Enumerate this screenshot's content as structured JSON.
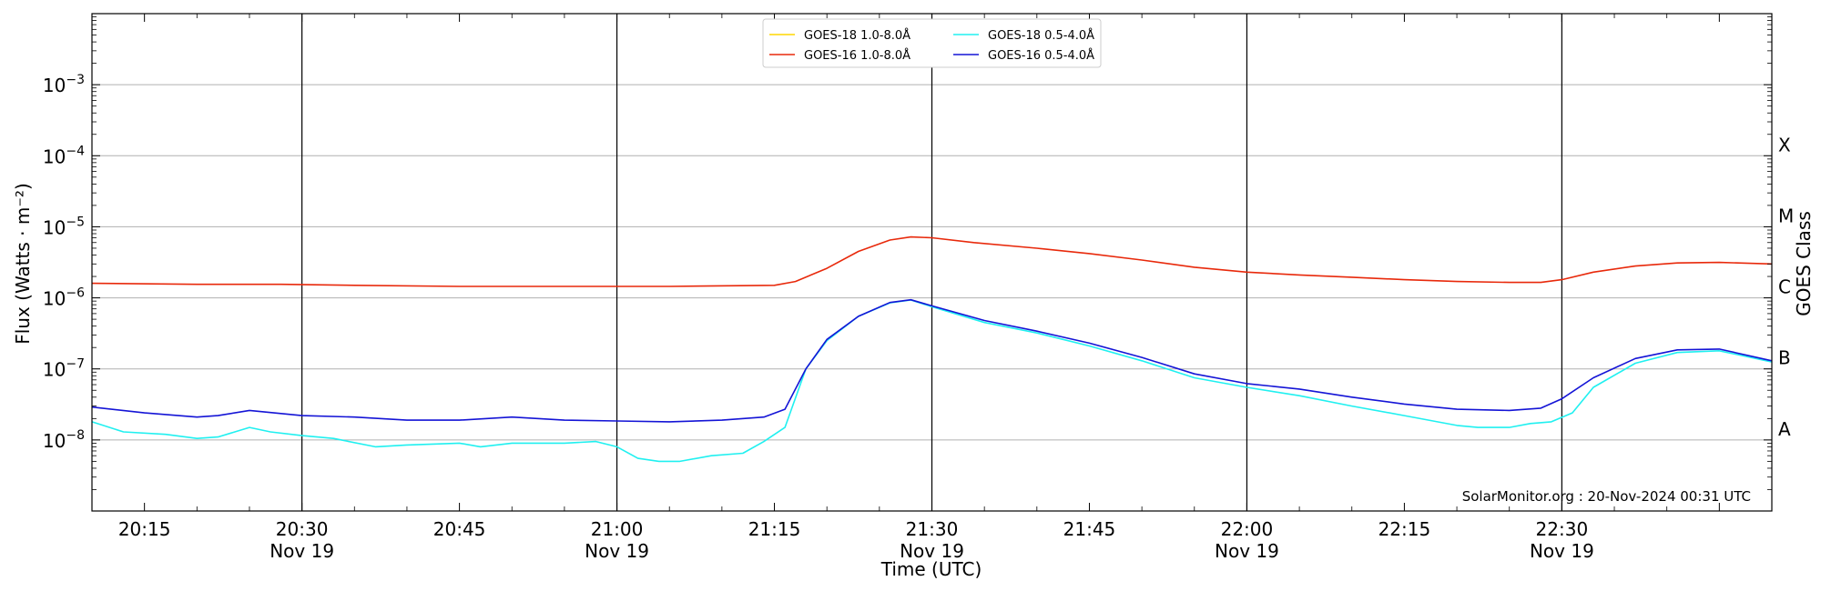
{
  "chart_data": {
    "type": "line",
    "xlabel": "Time (UTC)",
    "ylabel": "Flux (Watts · m⁻²)",
    "y2label": "GOES Class",
    "yscale": "log",
    "ylim": [
      1e-09,
      0.01
    ],
    "xlim": [
      "20:10",
      "22:50"
    ],
    "grid": "horizontal",
    "legend_placement": "top-center",
    "x_tick_labels": [
      {
        "time": "20:15",
        "line1": "20:15",
        "line2": ""
      },
      {
        "time": "20:30",
        "line1": "20:30",
        "line2": "Nov 19"
      },
      {
        "time": "20:45",
        "line1": "20:45",
        "line2": ""
      },
      {
        "time": "21:00",
        "line1": "21:00",
        "line2": "Nov 19"
      },
      {
        "time": "21:15",
        "line1": "21:15",
        "line2": ""
      },
      {
        "time": "21:30",
        "line1": "21:30",
        "line2": "Nov 19"
      },
      {
        "time": "21:45",
        "line1": "21:45",
        "line2": ""
      },
      {
        "time": "22:00",
        "line1": "22:00",
        "line2": "Nov 19"
      },
      {
        "time": "22:15",
        "line1": "22:15",
        "line2": ""
      },
      {
        "time": "22:30",
        "line1": "22:30",
        "line2": "Nov 19"
      }
    ],
    "vertical_markers": [
      "20:30",
      "21:00",
      "21:30",
      "22:00",
      "22:30"
    ],
    "y_ticks": [
      {
        "exp": -8,
        "label": "10",
        "sup": "−8"
      },
      {
        "exp": -7,
        "label": "10",
        "sup": "−7"
      },
      {
        "exp": -6,
        "label": "10",
        "sup": "−6"
      },
      {
        "exp": -5,
        "label": "10",
        "sup": "−5"
      },
      {
        "exp": -4,
        "label": "10",
        "sup": "−4"
      },
      {
        "exp": -3,
        "label": "10",
        "sup": "−3"
      }
    ],
    "goes_classes": [
      {
        "label": "A",
        "flux": 1e-08
      },
      {
        "label": "B",
        "flux": 1e-07
      },
      {
        "label": "C",
        "flux": 1e-06
      },
      {
        "label": "M",
        "flux": 1e-05
      },
      {
        "label": "X",
        "flux": 0.0001
      }
    ],
    "series": [
      {
        "name": "GOES-18 1.0-8.0Å",
        "color": "#FFD700",
        "x": [],
        "y": []
      },
      {
        "name": "GOES-16 1.0-8.0Å",
        "color": "#E8290B",
        "x": [
          "20:10",
          "20:20",
          "20:28",
          "20:35",
          "20:45",
          "20:55",
          "21:05",
          "21:15",
          "21:17",
          "21:20",
          "21:23",
          "21:26",
          "21:28",
          "21:30",
          "21:34",
          "21:40",
          "21:45",
          "21:50",
          "21:55",
          "22:00",
          "22:05",
          "22:10",
          "22:15",
          "22:20",
          "22:25",
          "22:28",
          "22:30",
          "22:33",
          "22:37",
          "22:41",
          "22:45",
          "22:50"
        ],
        "y": [
          1.6e-06,
          1.55e-06,
          1.55e-06,
          1.5e-06,
          1.45e-06,
          1.45e-06,
          1.45e-06,
          1.5e-06,
          1.7e-06,
          2.6e-06,
          4.5e-06,
          6.5e-06,
          7.2e-06,
          7e-06,
          6e-06,
          5e-06,
          4.2e-06,
          3.4e-06,
          2.7e-06,
          2.3e-06,
          2.1e-06,
          1.95e-06,
          1.8e-06,
          1.7e-06,
          1.65e-06,
          1.65e-06,
          1.8e-06,
          2.3e-06,
          2.8e-06,
          3.1e-06,
          3.15e-06,
          3e-06
        ]
      },
      {
        "name": "GOES-18 0.5-4.0Å",
        "color": "#20F0F0",
        "x": [
          "20:10",
          "20:13",
          "20:17",
          "20:20",
          "20:22",
          "20:25",
          "20:27",
          "20:30",
          "20:33",
          "20:37",
          "20:40",
          "20:45",
          "20:47",
          "20:50",
          "20:55",
          "20:58",
          "21:00",
          "21:02",
          "21:04",
          "21:06",
          "21:09",
          "21:12",
          "21:14",
          "21:16",
          "21:18",
          "21:20",
          "21:23",
          "21:26",
          "21:28",
          "21:30",
          "21:35",
          "21:40",
          "21:45",
          "21:50",
          "21:55",
          "22:00",
          "22:05",
          "22:10",
          "22:15",
          "22:20",
          "22:22",
          "22:25",
          "22:27",
          "22:29",
          "22:31",
          "22:33",
          "22:37",
          "22:41",
          "22:45",
          "22:50"
        ],
        "y": [
          1.8e-08,
          1.3e-08,
          1.2e-08,
          1.05e-08,
          1.1e-08,
          1.5e-08,
          1.3e-08,
          1.15e-08,
          1.05e-08,
          8e-09,
          8.5e-09,
          9e-09,
          8e-09,
          9e-09,
          9e-09,
          9.5e-09,
          8e-09,
          5.5e-09,
          5e-09,
          5e-09,
          6e-09,
          6.5e-09,
          9.5e-09,
          1.5e-08,
          1e-07,
          2.5e-07,
          5.5e-07,
          8.5e-07,
          9.3e-07,
          7.5e-07,
          4.5e-07,
          3.2e-07,
          2.1e-07,
          1.3e-07,
          7.5e-08,
          5.5e-08,
          4.2e-08,
          3e-08,
          2.2e-08,
          1.6e-08,
          1.5e-08,
          1.5e-08,
          1.7e-08,
          1.8e-08,
          2.4e-08,
          5.5e-08,
          1.2e-07,
          1.7e-07,
          1.8e-07,
          1.25e-07
        ]
      },
      {
        "name": "GOES-16 0.5-4.0Å",
        "color": "#1414D6",
        "x": [
          "20:10",
          "20:15",
          "20:20",
          "20:22",
          "20:25",
          "20:30",
          "20:35",
          "20:40",
          "20:45",
          "20:50",
          "20:55",
          "21:00",
          "21:05",
          "21:10",
          "21:14",
          "21:16",
          "21:18",
          "21:20",
          "21:23",
          "21:26",
          "21:28",
          "21:30",
          "21:35",
          "21:40",
          "21:45",
          "21:50",
          "21:55",
          "22:00",
          "22:05",
          "22:10",
          "22:15",
          "22:20",
          "22:25",
          "22:28",
          "22:30",
          "22:33",
          "22:37",
          "22:41",
          "22:45",
          "22:50"
        ],
        "y": [
          2.9e-08,
          2.4e-08,
          2.1e-08,
          2.2e-08,
          2.6e-08,
          2.2e-08,
          2.1e-08,
          1.9e-08,
          1.9e-08,
          2.1e-08,
          1.9e-08,
          1.85e-08,
          1.8e-08,
          1.9e-08,
          2.1e-08,
          2.7e-08,
          1e-07,
          2.6e-07,
          5.5e-07,
          8.6e-07,
          9.4e-07,
          7.7e-07,
          4.8e-07,
          3.4e-07,
          2.3e-07,
          1.45e-07,
          8.5e-08,
          6.2e-08,
          5.2e-08,
          4e-08,
          3.2e-08,
          2.7e-08,
          2.6e-08,
          2.8e-08,
          3.8e-08,
          7.5e-08,
          1.4e-07,
          1.85e-07,
          1.9e-07,
          1.3e-07
        ]
      }
    ],
    "annotation": "SolarMonitor.org : 20-Nov-2024 00:31 UTC"
  }
}
